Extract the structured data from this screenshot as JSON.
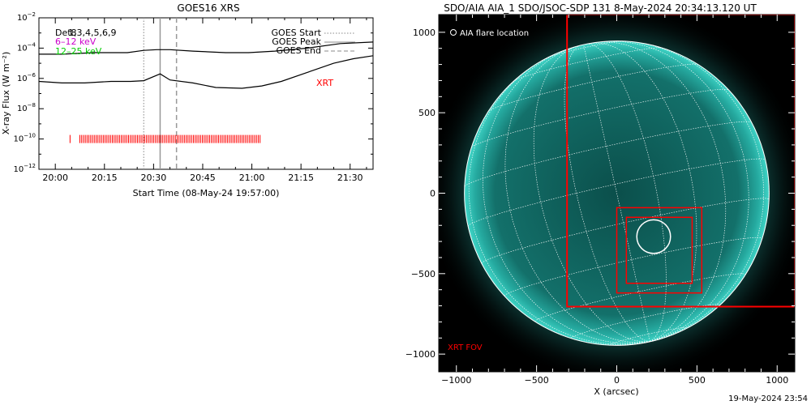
{
  "chart_data": [
    {
      "type": "line",
      "title": "GOES16 XRS",
      "xlabel": "Start Time (08-May-24 19:57:00)",
      "ylabel": "X-ray Flux (W m⁻²)",
      "xtick_labels": [
        "20:00",
        "20:15",
        "20:30",
        "20:45",
        "21:00",
        "21:15",
        "21:30"
      ],
      "xtick_minutes": [
        3,
        18,
        33,
        48,
        63,
        78,
        93
      ],
      "xlim_minutes": [
        -2,
        100
      ],
      "ytick_exponents": [
        -12,
        -10,
        -8,
        -6,
        -4,
        -2
      ],
      "ylim_log10": [
        -12,
        -2
      ],
      "legend_left": [
        {
          "text": "Det8",
          "color": "#000000"
        },
        {
          "text": "1,3,4,5,6,9",
          "color": "#000000"
        },
        {
          "text": "6–12 keV",
          "color": "#cc00cc"
        },
        {
          "text": "12–25 keV",
          "color": "#00cc00"
        }
      ],
      "legend_right": [
        {
          "text": "GOES Start",
          "style": "dotted"
        },
        {
          "text": "GOES Peak",
          "style": "solid"
        },
        {
          "text": "GOES End",
          "style": "dashed"
        }
      ],
      "annotation": "XRT",
      "markers_minutes": {
        "start": 30,
        "peak": 35,
        "end": 40
      },
      "series": [
        {
          "color": "#000000",
          "x": [
            -2,
            5,
            15,
            25,
            30,
            34,
            38,
            45,
            55,
            62,
            70,
            80,
            90,
            100
          ],
          "y": [
            -4.4,
            -4.4,
            -4.3,
            -4.3,
            -4.15,
            -4.1,
            -4.1,
            -4.2,
            -4.3,
            -4.3,
            -4.2,
            -4.0,
            -3.7,
            -3.6
          ]
        },
        {
          "color": "#000000",
          "x": [
            -2,
            5,
            12,
            20,
            26,
            30,
            35,
            38,
            45,
            52,
            60,
            66,
            72,
            80,
            88,
            94,
            100
          ],
          "y": [
            -6.2,
            -6.3,
            -6.3,
            -6.2,
            -6.2,
            -6.15,
            -5.7,
            -6.1,
            -6.3,
            -6.6,
            -6.65,
            -6.5,
            -6.2,
            -5.6,
            -5.0,
            -4.7,
            -4.5
          ]
        }
      ],
      "xrt_ticks_log10": -10,
      "xrt_ticks_minutes": {
        "lone": 7.5,
        "start": 10.5,
        "end": 66,
        "step": 0.55
      }
    },
    {
      "type": "map",
      "title": "SDO/AIA AIA_1 SDO/JSOC-SDP 131  8-May-2024 20:34:13.120 UT",
      "xlabel": "X (arcsec)",
      "xtick_labels": [
        "−1000",
        "−500",
        "0",
        "500",
        "1000"
      ],
      "xticks": [
        -1000,
        -500,
        0,
        500,
        1000
      ],
      "ytick_labels": [
        "1000",
        "500",
        "0",
        "−500",
        "−1000"
      ],
      "yticks": [
        1000,
        500,
        0,
        -500,
        -1000
      ],
      "xlim": [
        -1110,
        1110
      ],
      "ylim": [
        -1110,
        1110
      ],
      "solar_radius_arcsec": 950,
      "legend_text": "AIA flare location",
      "fov_label": "XRT FOV",
      "flare_location": {
        "x": 230,
        "y": -270,
        "r": 105
      },
      "boxes": [
        {
          "x0": -310,
          "y0": -705,
          "x1": 1110,
          "y1": 1110
        },
        {
          "x0": 0,
          "y0": -620,
          "x1": 530,
          "y1": -90
        },
        {
          "x0": 60,
          "y0": -560,
          "x1": 470,
          "y1": -150
        }
      ],
      "colors": {
        "disk": "#0e5b57",
        "limb": "#2ec9bc",
        "grid": "#ffffff",
        "box": "#ff0000"
      }
    }
  ],
  "footer_timestamp": "19-May-2024 23:54"
}
